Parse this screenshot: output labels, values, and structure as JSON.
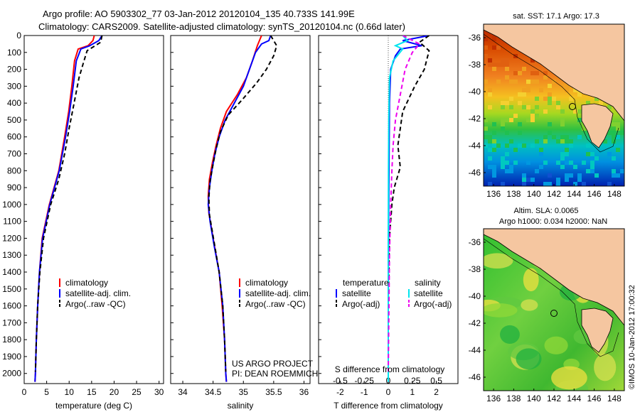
{
  "title_line1": "Argo profile: AO 5903302_77 03-Jan-2012 20120104_135 40.733S 141.99E",
  "title_line2": "Climatology: CARS2009. Satellite-adjusted climatology: synTS_20120104.nc (0.66d later)",
  "colors": {
    "climatology": "#ff0000",
    "satellite": "#0000ff",
    "argo": "#000000",
    "satellite_salinity": "#00e5ee",
    "argo_adj_salinity": "#ee00ee",
    "land": "#f5c6a0",
    "coast": "#000000"
  },
  "chart_data": [
    {
      "type": "line",
      "xlabel": "temperature (deg C)",
      "xlim": [
        0,
        31
      ],
      "xticks": [
        0,
        5,
        10,
        15,
        20,
        25,
        30
      ],
      "ylim": [
        0,
        2060
      ],
      "yreversed": true,
      "yticks": [
        0,
        100,
        200,
        300,
        400,
        500,
        600,
        700,
        800,
        900,
        1000,
        1100,
        1200,
        1300,
        1400,
        1500,
        1600,
        1700,
        1800,
        1900,
        2000
      ],
      "legend": [
        "climatology",
        "satellite-adj. clim.",
        "Argo(..raw -QC)"
      ],
      "series": [
        {
          "name": "climatology",
          "style": "solid",
          "color": "#ff0000",
          "points": [
            [
              15.6,
              0
            ],
            [
              15.3,
              30
            ],
            [
              14.2,
              60
            ],
            [
              12.0,
              80
            ],
            [
              11.2,
              150
            ],
            [
              10.6,
              300
            ],
            [
              9.9,
              450
            ],
            [
              9.0,
              600
            ],
            [
              7.7,
              800
            ],
            [
              5.6,
              1000
            ],
            [
              4.0,
              1200
            ],
            [
              3.4,
              1400
            ],
            [
              3.0,
              1600
            ],
            [
              2.7,
              1800
            ],
            [
              2.5,
              2000
            ],
            [
              2.4,
              2050
            ]
          ]
        },
        {
          "name": "satellite-adj. clim.",
          "style": "solid",
          "color": "#0000ff",
          "points": [
            [
              17.3,
              0
            ],
            [
              16.6,
              30
            ],
            [
              14.6,
              60
            ],
            [
              12.6,
              80
            ],
            [
              11.6,
              150
            ],
            [
              10.9,
              300
            ],
            [
              10.1,
              450
            ],
            [
              9.2,
              600
            ],
            [
              7.8,
              800
            ],
            [
              5.7,
              1000
            ],
            [
              4.1,
              1200
            ],
            [
              3.4,
              1400
            ],
            [
              3.0,
              1600
            ],
            [
              2.7,
              1800
            ],
            [
              2.5,
              2000
            ],
            [
              2.4,
              2050
            ]
          ]
        },
        {
          "name": "Argo(..raw -QC)",
          "style": "dashed",
          "color": "#000000",
          "points": [
            [
              17.3,
              0
            ],
            [
              17.0,
              40
            ],
            [
              14.0,
              90
            ],
            [
              13.3,
              150
            ],
            [
              12.2,
              250
            ],
            [
              11.1,
              400
            ],
            [
              10.0,
              550
            ],
            [
              9.0,
              700
            ],
            [
              7.7,
              850
            ],
            [
              5.9,
              1000
            ],
            [
              4.3,
              1200
            ],
            [
              3.5,
              1400
            ],
            [
              3.0,
              1600
            ],
            [
              2.7,
              1800
            ],
            [
              2.5,
              1990
            ]
          ]
        }
      ]
    },
    {
      "type": "line",
      "xlabel": "salinity",
      "xlim": [
        33.8,
        36.1
      ],
      "xticks": [
        34,
        34.5,
        35,
        35.5,
        36
      ],
      "ylim": [
        0,
        2060
      ],
      "yreversed": true,
      "legend": [
        "climatology",
        "satellite-adj. clim.",
        "Argo(..raw -QC)"
      ],
      "annotation_line1": "US ARGO PROJECT",
      "annotation_line2": "PI: DEAN ROEMMICH",
      "series": [
        {
          "name": "climatology",
          "style": "solid",
          "color": "#ff0000",
          "points": [
            [
              35.3,
              0
            ],
            [
              35.23,
              60
            ],
            [
              35.15,
              150
            ],
            [
              35.05,
              250
            ],
            [
              34.9,
              350
            ],
            [
              34.72,
              450
            ],
            [
              34.62,
              550
            ],
            [
              34.55,
              650
            ],
            [
              34.49,
              750
            ],
            [
              34.44,
              850
            ],
            [
              34.42,
              950
            ],
            [
              34.43,
              1050
            ],
            [
              34.5,
              1200
            ],
            [
              34.6,
              1400
            ],
            [
              34.65,
              1600
            ],
            [
              34.69,
              1800
            ],
            [
              34.71,
              2000
            ],
            [
              34.72,
              2050
            ]
          ]
        },
        {
          "name": "satellite-adj. clim.",
          "style": "solid",
          "color": "#0000ff",
          "points": [
            [
              35.45,
              0
            ],
            [
              35.42,
              30
            ],
            [
              35.3,
              50
            ],
            [
              35.2,
              100
            ],
            [
              35.1,
              200
            ],
            [
              35.0,
              300
            ],
            [
              34.85,
              400
            ],
            [
              34.7,
              500
            ],
            [
              34.6,
              600
            ],
            [
              34.53,
              700
            ],
            [
              34.48,
              800
            ],
            [
              34.44,
              900
            ],
            [
              34.42,
              1000
            ],
            [
              34.45,
              1100
            ],
            [
              34.52,
              1250
            ],
            [
              34.6,
              1400
            ],
            [
              34.66,
              1600
            ],
            [
              34.69,
              1800
            ],
            [
              34.71,
              2000
            ],
            [
              34.72,
              2050
            ]
          ]
        },
        {
          "name": "Argo(..raw -QC)",
          "style": "dashed",
          "color": "#000000",
          "points": [
            [
              35.45,
              0
            ],
            [
              35.55,
              60
            ],
            [
              35.5,
              120
            ],
            [
              35.38,
              200
            ],
            [
              35.22,
              280
            ],
            [
              34.98,
              380
            ],
            [
              34.75,
              470
            ],
            [
              34.62,
              570
            ],
            [
              34.55,
              670
            ],
            [
              34.5,
              760
            ],
            [
              34.45,
              860
            ],
            [
              34.43,
              960
            ],
            [
              34.44,
              1060
            ],
            [
              34.52,
              1230
            ],
            [
              34.6,
              1400
            ],
            [
              34.66,
              1600
            ],
            [
              34.69,
              1800
            ],
            [
              34.71,
              1990
            ]
          ]
        }
      ]
    },
    {
      "type": "line",
      "xlabel": "T difference from climatology",
      "xlabel2": "S difference from climatology",
      "xlim": [
        -2.9,
        2.9
      ],
      "xticks": [
        -2,
        -1,
        0,
        1,
        2
      ],
      "xticks2": [
        "-0.5",
        "-0.25",
        "0",
        "0.25",
        "0.5"
      ],
      "xticks2_pos": [
        -2,
        -1,
        0,
        1,
        2
      ],
      "ylim": [
        0,
        2060
      ],
      "yreversed": true,
      "legend_left_title": "temperature",
      "legend_right_title": "salinity",
      "legend_left": [
        "satellite",
        "Argo(-adj)"
      ],
      "legend_right": [
        "satellite",
        "Argo(-adj)"
      ],
      "series": [
        {
          "name": "T satellite",
          "style": "solid",
          "color": "#0000ff",
          "points": [
            [
              1.7,
              0
            ],
            [
              0.6,
              30
            ],
            [
              1.4,
              60
            ],
            [
              0.5,
              80
            ],
            [
              0.3,
              120
            ],
            [
              0.1,
              200
            ],
            [
              0.05,
              400
            ],
            [
              0.03,
              800
            ],
            [
              0.01,
              1200
            ],
            [
              0.0,
              1600
            ],
            [
              0.0,
              2050
            ]
          ]
        },
        {
          "name": "T Argo(-adj)",
          "style": "dashed",
          "color": "#000000",
          "points": [
            [
              1.7,
              0
            ],
            [
              1.3,
              40
            ],
            [
              1.7,
              90
            ],
            [
              1.5,
              200
            ],
            [
              1.1,
              300
            ],
            [
              0.6,
              450
            ],
            [
              0.5,
              550
            ],
            [
              0.4,
              650
            ],
            [
              0.5,
              780
            ],
            [
              0.25,
              900
            ],
            [
              0.15,
              1000
            ],
            [
              0.05,
              1200
            ],
            [
              0.0,
              1600
            ],
            [
              0.0,
              1990
            ]
          ]
        },
        {
          "name": "S satellite",
          "style": "solid",
          "color": "#00e5ee",
          "points": [
            [
              0.6,
              0
            ],
            [
              0.8,
              30
            ],
            [
              0.3,
              60
            ],
            [
              0.6,
              80
            ],
            [
              0.2,
              150
            ],
            [
              0.05,
              250
            ],
            [
              0.02,
              500
            ],
            [
              0.01,
              800
            ],
            [
              0.0,
              1200
            ],
            [
              0.0,
              2050
            ]
          ]
        },
        {
          "name": "S Argo(-adj)",
          "style": "dashed",
          "color": "#ee00ee",
          "points": [
            [
              0.6,
              0
            ],
            [
              1.3,
              50
            ],
            [
              1.0,
              100
            ],
            [
              0.7,
              200
            ],
            [
              0.5,
              350
            ],
            [
              0.3,
              500
            ],
            [
              0.2,
              650
            ],
            [
              0.15,
              800
            ],
            [
              0.1,
              1000
            ],
            [
              0.05,
              1300
            ],
            [
              0.0,
              1990
            ]
          ]
        }
      ]
    }
  ],
  "map_top": {
    "title": "sat. SST: 17.1  Argo: 17.3",
    "xticks": [
      "136",
      "138",
      "140",
      "142",
      "144",
      "146",
      "148"
    ],
    "yticks": [
      "-36",
      "-38",
      "-40",
      "-42",
      "-44",
      "-46"
    ],
    "lon_range": [
      135,
      149
    ],
    "lat_range": [
      -47,
      -35
    ],
    "marker": [
      142,
      -40.7
    ],
    "type": "heatmap (sea surface temperature)"
  },
  "map_bottom": {
    "title_line1": "Altim. SLA: 0.0065",
    "title_line2": "Argo h1000: 0.034 h2000: NaN",
    "xticks": [
      "136",
      "138",
      "140",
      "142",
      "144",
      "146",
      "148"
    ],
    "yticks": [
      "-36",
      "-38",
      "-40",
      "-42",
      "-44",
      "-46"
    ],
    "lon_range": [
      135,
      149
    ],
    "lat_range": [
      -47,
      -35
    ],
    "marker": [
      142,
      -40.7
    ],
    "type": "heatmap (sea level anomaly)"
  },
  "credit": "©IMOS 10-Jan-2012 17:00:32"
}
